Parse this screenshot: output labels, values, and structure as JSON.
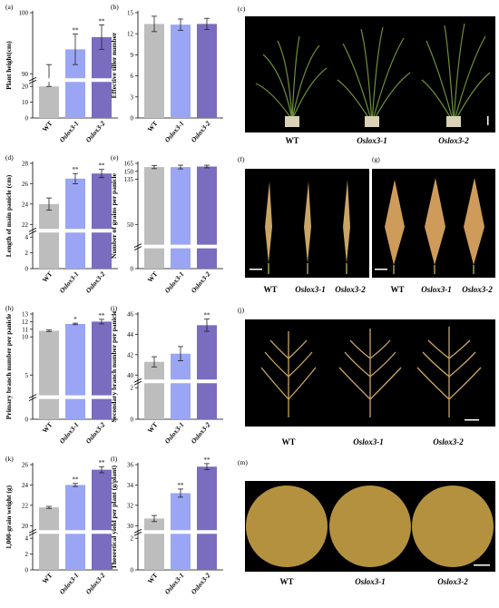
{
  "figure": {
    "colors": {
      "wt": "#bdbdbd",
      "oslox3_1": "#9aa6f4",
      "oslox3_2": "#7a6cbf",
      "photo_bg": "#000000",
      "break_line": "#ffffff"
    },
    "genotypes": [
      "WT",
      "Oslox3-1",
      "Oslox3-2"
    ],
    "photo_labels": {
      "c": [
        "WT",
        "Oslox3-1",
        "Oslox3-2"
      ],
      "f": [
        "WT",
        "Oslox3-1",
        "Oslox3-2"
      ],
      "g": [
        "WT",
        "Oslox3-1",
        "Oslox3-2"
      ],
      "j": [
        "WT",
        "Oslox3-1",
        "Oslox3-2"
      ],
      "m": [
        "WT",
        "Oslox3-1",
        "Oslox3-2"
      ]
    },
    "panel_letters": {
      "c": "(c)",
      "f": "(f)",
      "g": "(g)",
      "j": "(j)",
      "m": "(m)"
    }
  },
  "chart_data": [
    {
      "panel": "(a)",
      "type": "bar",
      "categories": [
        "WT",
        "Oslox3-1",
        "Oslox3-2"
      ],
      "values": [
        89,
        94,
        96
      ],
      "errors": [
        2.5,
        2.5,
        2
      ],
      "significance": [
        "",
        "**",
        "**"
      ],
      "ylabel": "Plant height(cm)",
      "ylim": [
        0,
        100
      ],
      "yticks": [
        "0",
        "10",
        "20",
        "90",
        "100"
      ],
      "axis_break": true
    },
    {
      "panel": "(b)",
      "type": "bar",
      "categories": [
        "WT",
        "Oslox3-1",
        "Oslox3-2"
      ],
      "values": [
        13.4,
        13.3,
        13.4
      ],
      "errors": [
        1.1,
        0.8,
        0.8
      ],
      "significance": [
        "",
        "",
        ""
      ],
      "ylabel": "Effective tiller number",
      "ylim": [
        0,
        15
      ],
      "yticks": [
        "0",
        "3",
        "6",
        "9",
        "12",
        "15"
      ],
      "axis_break": false
    },
    {
      "panel": "(d)",
      "type": "bar",
      "categories": [
        "WT",
        "Oslox3-1",
        "Oslox3-2"
      ],
      "values": [
        24,
        26.5,
        27
      ],
      "errors": [
        0.6,
        0.5,
        0.4
      ],
      "significance": [
        "",
        "**",
        "**"
      ],
      "ylabel": "Length of main panicle (cm)",
      "ylim": [
        0,
        28
      ],
      "yticks": [
        "0",
        "2",
        "4",
        "22",
        "24",
        "26",
        "28"
      ],
      "axis_break": true
    },
    {
      "panel": "(e)",
      "type": "bar",
      "categories": [
        "WT",
        "Oslox3-1",
        "Oslox3-2"
      ],
      "values": [
        158,
        158,
        159
      ],
      "errors": [
        3,
        3.5,
        2.5
      ],
      "significance": [
        "",
        "",
        ""
      ],
      "ylabel": "Number of grains per panicle",
      "ylim": [
        0,
        165
      ],
      "yticks": [
        "0",
        "50",
        "135",
        "150",
        "165"
      ],
      "axis_break": true
    },
    {
      "panel": "(h)",
      "type": "bar",
      "categories": [
        "WT",
        "Oslox3-1",
        "Oslox3-2"
      ],
      "values": [
        10.8,
        11.7,
        12
      ],
      "errors": [
        0.1,
        0.1,
        0.3
      ],
      "significance": [
        "",
        "*",
        "**"
      ],
      "ylabel": "Primary branch number per panicle",
      "ylim": [
        0,
        13
      ],
      "yticks": [
        "0",
        "5",
        "10",
        "11",
        "12",
        "13"
      ],
      "axis_break": true
    },
    {
      "panel": "(i)",
      "type": "bar",
      "categories": [
        "WT",
        "Oslox3-1",
        "Oslox3-2"
      ],
      "values": [
        41.3,
        42.1,
        44.9
      ],
      "errors": [
        0.5,
        0.7,
        0.6
      ],
      "significance": [
        "",
        "",
        "**"
      ],
      "ylabel": "Secondary branch number per panicle",
      "ylim": [
        0,
        46
      ],
      "yticks": [
        "0",
        "2",
        "40",
        "42",
        "44",
        "46"
      ],
      "axis_break": true
    },
    {
      "panel": "(k)",
      "type": "bar",
      "categories": [
        "WT",
        "Oslox3-1",
        "Oslox3-2"
      ],
      "values": [
        21.8,
        24,
        25.5
      ],
      "errors": [
        0.1,
        0.15,
        0.3
      ],
      "significance": [
        "",
        "**",
        "**"
      ],
      "ylabel": "1,000-grain weight (g)",
      "ylim": [
        0,
        26
      ],
      "yticks": [
        "0",
        "2",
        "4",
        "20",
        "22",
        "24",
        "26"
      ],
      "axis_break": true
    },
    {
      "panel": "(l)",
      "type": "bar",
      "categories": [
        "WT",
        "Oslox3-1",
        "Oslox3-2"
      ],
      "values": [
        30.7,
        33.2,
        35.8
      ],
      "errors": [
        0.3,
        0.4,
        0.3
      ],
      "significance": [
        "",
        "**",
        "**"
      ],
      "ylabel": "Theoretical yield per plant (g/plant)",
      "ylim": [
        0,
        36
      ],
      "yticks": [
        "0",
        "2",
        "30",
        "32",
        "34",
        "36"
      ],
      "axis_break": true
    }
  ]
}
